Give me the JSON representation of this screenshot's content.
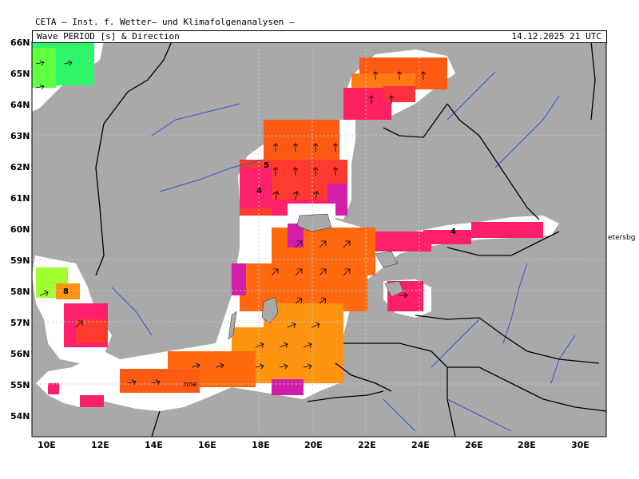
{
  "header": {
    "organization": "CETA — Inst. f. Wetter— und Klimafolgenanalysen —",
    "parameter": "Wave PERIOD [s] & Direction",
    "datetime": "14.12.2025 21 UTC"
  },
  "axes": {
    "lat_ticks": [
      "66N",
      "65N",
      "64N",
      "63N",
      "62N",
      "61N",
      "60N",
      "59N",
      "58N",
      "57N",
      "56N",
      "55N",
      "54N"
    ],
    "lon_ticks": [
      "10E",
      "12E",
      "14E",
      "16E",
      "18E",
      "20E",
      "22E",
      "24E",
      "26E",
      "28E",
      "30E"
    ]
  },
  "map_labels": {
    "city_right": "etersbg",
    "city_south": "nne"
  },
  "isoline_labels": [
    "5",
    "4",
    "4",
    "8"
  ],
  "colors": {
    "land": "#a9a9a9",
    "water_low": "#ffffff",
    "period_4": "#ff1f6b",
    "period_5": "#ff4a1a",
    "period_6": "#ff6a10",
    "period_7": "#ff9410",
    "period_8": "#a0ff30",
    "period_9": "#2ef56a",
    "magenta": "#d21ea8",
    "border": "#000000",
    "river": "#3a4fd8"
  }
}
